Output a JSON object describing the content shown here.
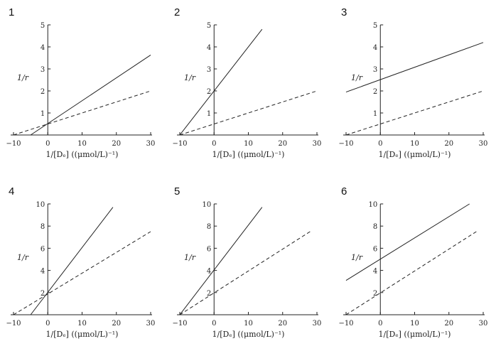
{
  "chart_data": [
    {
      "panel": "1",
      "type": "line",
      "xlim": [
        -10,
        30
      ],
      "ylim": [
        0,
        5
      ],
      "xticks": [
        -10,
        0,
        10,
        20,
        30
      ],
      "yticks": [
        1,
        2,
        3,
        4,
        5
      ],
      "xlabel": "1/[Dₑ] ((μmol/L)⁻¹)",
      "ylabel": "1/r",
      "series": [
        {
          "name": "solid",
          "style": "solid",
          "x": [
            -5,
            30
          ],
          "y": [
            0,
            3.63
          ]
        },
        {
          "name": "dashed",
          "style": "dashed",
          "x": [
            -10,
            30
          ],
          "y": [
            0,
            2.0
          ]
        }
      ]
    },
    {
      "panel": "2",
      "type": "line",
      "xlim": [
        -10,
        30
      ],
      "ylim": [
        0,
        5
      ],
      "xticks": [
        -10,
        0,
        10,
        20,
        30
      ],
      "yticks": [
        1,
        2,
        3,
        4,
        5
      ],
      "xlabel": "1/[Dₑ] ((μmol/L)⁻¹)",
      "ylabel": "1/r",
      "series": [
        {
          "name": "solid",
          "style": "solid",
          "x": [
            -10,
            14
          ],
          "y": [
            0,
            4.8
          ]
        },
        {
          "name": "dashed",
          "style": "dashed",
          "x": [
            -10,
            30
          ],
          "y": [
            0,
            2.0
          ]
        }
      ]
    },
    {
      "panel": "3",
      "type": "line",
      "xlim": [
        -10,
        30
      ],
      "ylim": [
        0,
        5
      ],
      "xticks": [
        -10,
        0,
        10,
        20,
        30
      ],
      "yticks": [
        1,
        2,
        3,
        4,
        5
      ],
      "xlabel": "1/[Dₑ] ((μmol/L)⁻¹)",
      "ylabel": "1/r",
      "series": [
        {
          "name": "solid",
          "style": "solid",
          "x": [
            -10,
            30
          ],
          "y": [
            1.95,
            4.2
          ]
        },
        {
          "name": "dashed",
          "style": "dashed",
          "x": [
            -10,
            30
          ],
          "y": [
            0,
            2.0
          ]
        }
      ]
    },
    {
      "panel": "4",
      "type": "line",
      "xlim": [
        -10,
        30
      ],
      "ylim": [
        0,
        10
      ],
      "xticks": [
        -10,
        0,
        10,
        20,
        30
      ],
      "yticks": [
        2,
        4,
        6,
        8,
        10
      ],
      "xlabel": "1/[Dₑ] ((μmol/L)⁻¹)",
      "ylabel": "1/r",
      "series": [
        {
          "name": "solid",
          "style": "solid",
          "x": [
            -5,
            19
          ],
          "y": [
            0,
            9.7
          ]
        },
        {
          "name": "dashed",
          "style": "dashed",
          "x": [
            -10,
            30
          ],
          "y": [
            0,
            7.5
          ]
        }
      ]
    },
    {
      "panel": "5",
      "type": "line",
      "xlim": [
        -10,
        30
      ],
      "ylim": [
        0,
        10
      ],
      "xticks": [
        -10,
        0,
        10,
        20,
        30
      ],
      "yticks": [
        2,
        4,
        6,
        8,
        10
      ],
      "xlabel": "1/[Dₑ] ((μmol/L)⁻¹)",
      "ylabel": "1/r",
      "series": [
        {
          "name": "solid",
          "style": "solid",
          "x": [
            -10,
            14
          ],
          "y": [
            0,
            9.7
          ]
        },
        {
          "name": "dashed",
          "style": "dashed",
          "x": [
            -10,
            28
          ],
          "y": [
            0,
            7.5
          ]
        }
      ]
    },
    {
      "panel": "6",
      "type": "line",
      "xlim": [
        -10,
        30
      ],
      "ylim": [
        0,
        10
      ],
      "xticks": [
        -10,
        0,
        10,
        20,
        30
      ],
      "yticks": [
        2,
        4,
        6,
        8,
        10
      ],
      "xlabel": "1/[Dₑ] ((μmol/L)⁻¹)",
      "ylabel": "1/r",
      "series": [
        {
          "name": "solid",
          "style": "solid",
          "x": [
            -10,
            26
          ],
          "y": [
            3.1,
            10.0
          ]
        },
        {
          "name": "dashed",
          "style": "dashed",
          "x": [
            -10,
            28
          ],
          "y": [
            0,
            7.5
          ]
        }
      ]
    }
  ]
}
